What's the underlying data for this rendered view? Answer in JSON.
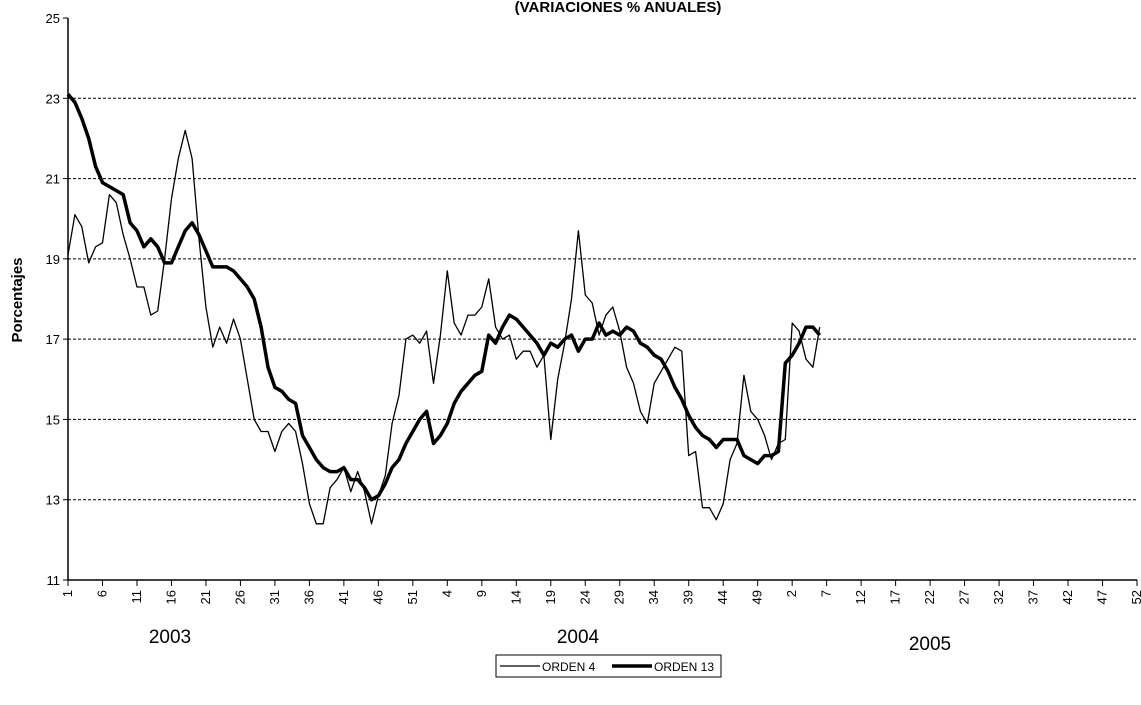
{
  "chart_data": {
    "type": "line",
    "title": "(VARIACIONES % ANUALES)",
    "y_label": "Porcentajes",
    "annotations": [
      "2003",
      "2004",
      "2005"
    ],
    "categories": [
      "1",
      null,
      null,
      null,
      null,
      "6",
      null,
      null,
      null,
      null,
      "11",
      null,
      null,
      null,
      null,
      "16",
      null,
      null,
      null,
      null,
      "21",
      null,
      null,
      null,
      null,
      "26",
      null,
      null,
      null,
      null,
      "31",
      null,
      null,
      null,
      null,
      "36",
      null,
      null,
      null,
      null,
      "41",
      null,
      null,
      null,
      null,
      "46",
      null,
      null,
      null,
      null,
      "51",
      null,
      null,
      null,
      null,
      "4",
      null,
      null,
      null,
      null,
      "9",
      null,
      null,
      null,
      null,
      "14",
      null,
      null,
      null,
      null,
      "19",
      null,
      null,
      null,
      null,
      "24",
      null,
      null,
      null,
      null,
      "29",
      null,
      null,
      null,
      null,
      "34",
      null,
      null,
      null,
      null,
      "39",
      null,
      null,
      null,
      null,
      "44",
      null,
      null,
      null,
      null,
      "49",
      null,
      null,
      null,
      null,
      "2",
      null,
      null,
      null,
      null,
      "7",
      null,
      null,
      null,
      null,
      "12",
      null,
      null,
      null,
      null,
      "17",
      null,
      null,
      null,
      null,
      "22",
      null,
      null,
      null,
      null,
      "27",
      null,
      null,
      null,
      null,
      "32",
      null,
      null,
      null,
      null,
      "37",
      null,
      null,
      null,
      null,
      "42",
      null,
      null,
      null,
      null,
      "47",
      null,
      null,
      null,
      null,
      "52"
    ],
    "series": [
      {
        "name": "ORDEN 4",
        "color": "#000000",
        "width": 1.3,
        "values": [
          19.1,
          20.1,
          19.8,
          18.9,
          19.3,
          19.4,
          20.6,
          20.4,
          19.6,
          19.0,
          18.3,
          18.3,
          17.6,
          17.7,
          19.0,
          20.5,
          21.5,
          22.2,
          21.5,
          19.5,
          17.8,
          16.8,
          17.3,
          16.9,
          17.5,
          17.0,
          16.0,
          15.0,
          14.7,
          14.7,
          14.2,
          14.7,
          14.9,
          14.7,
          13.9,
          12.9,
          12.4,
          12.4,
          13.3,
          13.5,
          13.8,
          13.2,
          13.7,
          13.2,
          12.4,
          13.1,
          13.6,
          14.9,
          15.6,
          17.0,
          17.1,
          16.9,
          17.2,
          15.9,
          17.1,
          18.7,
          17.4,
          17.1,
          17.6,
          17.6,
          17.8,
          18.5,
          17.3,
          17.0,
          17.1,
          16.5,
          16.7,
          16.7,
          16.3,
          16.6,
          14.5,
          16.0,
          16.9,
          18.0,
          19.7,
          18.1,
          17.9,
          17.1,
          17.6,
          17.8,
          17.2,
          16.3,
          15.9,
          15.2,
          14.9,
          15.9,
          16.2,
          16.5,
          16.8,
          16.7,
          14.1,
          14.2,
          12.8,
          12.8,
          12.5,
          12.9,
          14.0,
          14.4,
          16.1,
          15.2,
          15.0,
          14.6,
          14.0,
          14.4,
          14.5,
          17.4,
          17.2,
          16.5,
          16.3,
          17.3,
          null,
          null,
          null,
          null,
          null,
          null,
          null,
          null,
          null,
          null,
          null,
          null,
          null,
          null,
          null,
          null,
          null,
          null,
          null,
          null,
          null,
          null,
          null,
          null,
          null,
          null,
          null,
          null,
          null,
          null,
          null,
          null,
          null,
          null,
          null,
          null,
          null,
          null,
          null,
          null,
          null,
          null,
          null,
          null,
          null,
          null
        ]
      },
      {
        "name": "ORDEN 13",
        "color": "#000000",
        "width": 3.5,
        "values": [
          23.1,
          22.9,
          22.5,
          22.0,
          21.3,
          20.9,
          20.8,
          20.7,
          20.6,
          19.9,
          19.7,
          19.3,
          19.5,
          19.3,
          18.9,
          18.9,
          19.3,
          19.7,
          19.9,
          19.6,
          19.2,
          18.8,
          18.8,
          18.8,
          18.7,
          18.5,
          18.3,
          18.0,
          17.3,
          16.3,
          15.8,
          15.7,
          15.5,
          15.4,
          14.6,
          14.3,
          14.0,
          13.8,
          13.7,
          13.7,
          13.8,
          13.5,
          13.5,
          13.3,
          13.0,
          13.1,
          13.4,
          13.8,
          14.0,
          14.4,
          14.7,
          15.0,
          15.2,
          14.4,
          14.6,
          14.9,
          15.4,
          15.7,
          15.9,
          16.1,
          16.2,
          17.1,
          16.9,
          17.3,
          17.6,
          17.5,
          17.3,
          17.1,
          16.9,
          16.6,
          16.9,
          16.8,
          17.0,
          17.1,
          16.7,
          17.0,
          17.0,
          17.4,
          17.1,
          17.2,
          17.1,
          17.3,
          17.2,
          16.9,
          16.8,
          16.6,
          16.5,
          16.2,
          15.8,
          15.5,
          15.1,
          14.8,
          14.6,
          14.5,
          14.3,
          14.5,
          14.5,
          14.5,
          14.1,
          14.0,
          13.9,
          14.1,
          14.1,
          14.2,
          16.4,
          16.6,
          16.9,
          17.3,
          17.3,
          17.1,
          null,
          null,
          null,
          null,
          null,
          null,
          null,
          null,
          null,
          null,
          null,
          null,
          null,
          null,
          null,
          null,
          null,
          null,
          null,
          null,
          null,
          null,
          null,
          null,
          null,
          null,
          null,
          null,
          null,
          null,
          null,
          null,
          null,
          null,
          null,
          null,
          null,
          null,
          null,
          null,
          null,
          null,
          null,
          null,
          null,
          null
        ]
      }
    ],
    "ylim": [
      11,
      25
    ],
    "yticks": [
      11,
      13,
      15,
      17,
      19,
      21,
      23,
      25
    ],
    "grid": true
  }
}
